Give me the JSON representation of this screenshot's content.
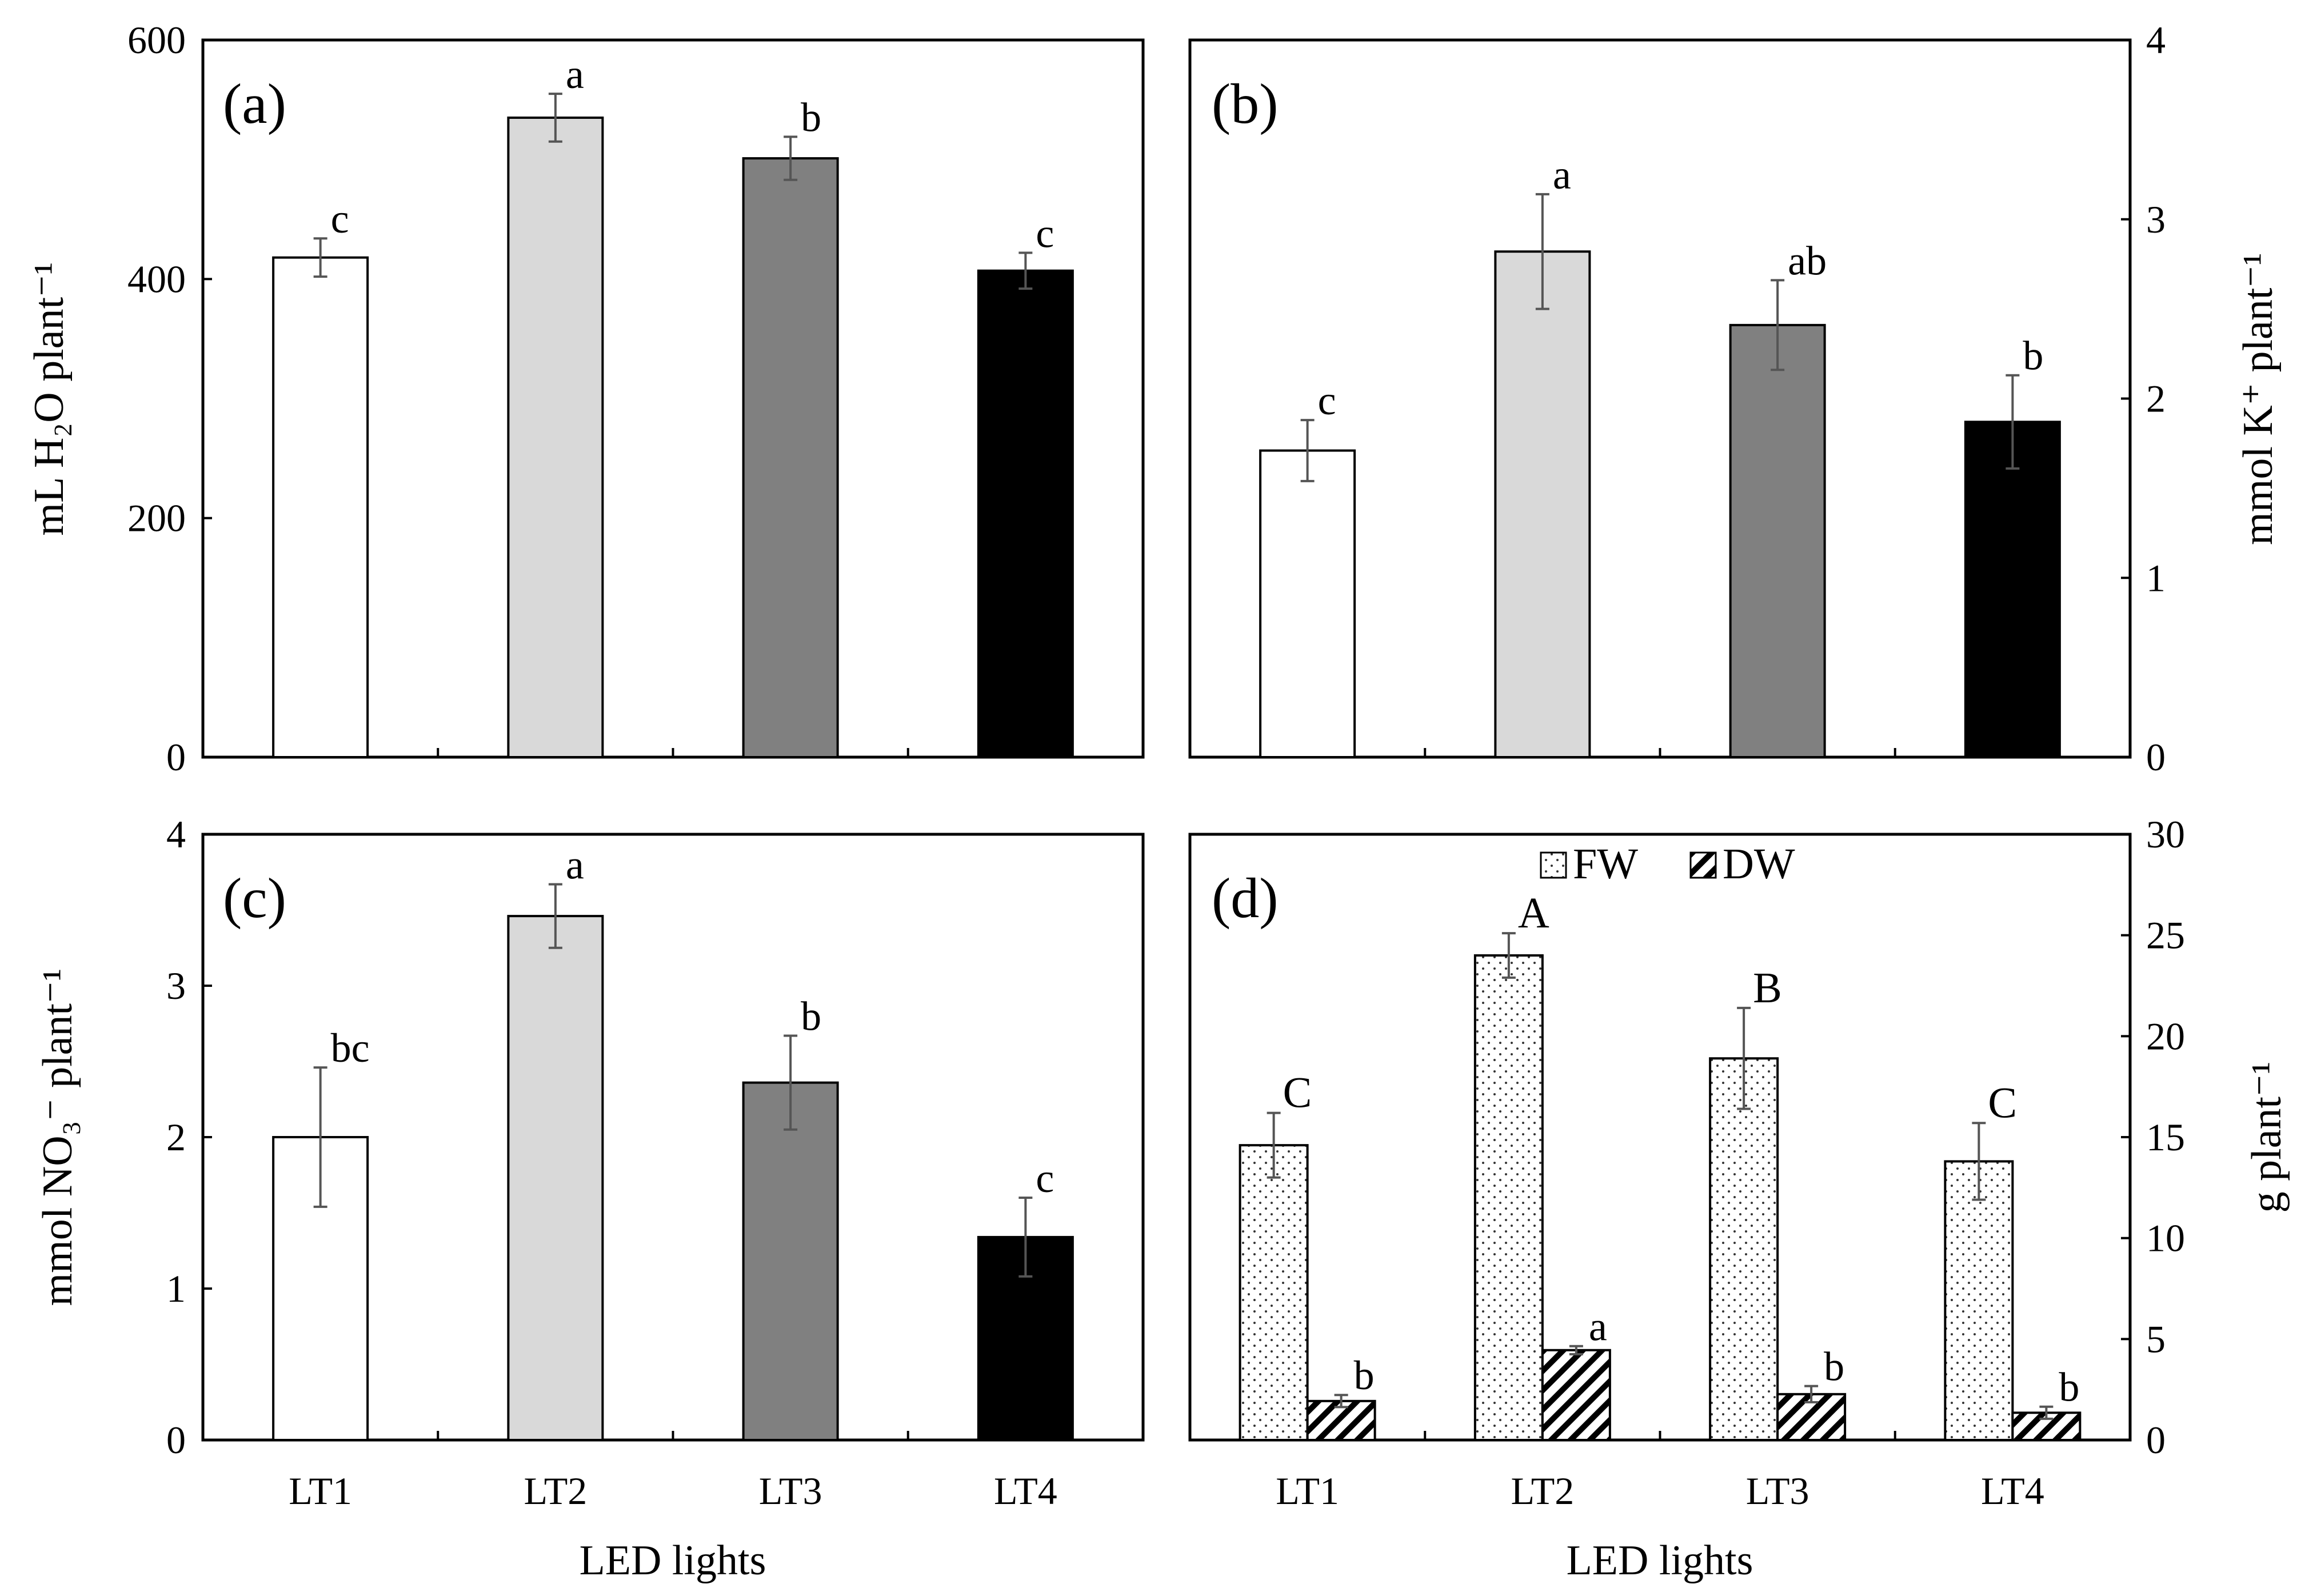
{
  "colors": {
    "LT1": "#ffffff",
    "LT2": "#d9d9d9",
    "LT3": "#808080",
    "LT4": "#000000",
    "error_bar": "#555555"
  },
  "chart_data": [
    {
      "id": "a",
      "panel_label": "(a)",
      "type": "bar",
      "categories": [
        "LT1",
        "LT2",
        "LT3",
        "LT4"
      ],
      "values": [
        418,
        535,
        501,
        407
      ],
      "errors": [
        16,
        20,
        18,
        15
      ],
      "significance": [
        "c",
        "a",
        "b",
        "c"
      ],
      "ylabel": "mL H₂O plant⁻¹",
      "ylim": [
        0,
        600
      ],
      "yticks": [
        "0",
        "200",
        "400",
        "600"
      ],
      "xlabel": "",
      "axis_side": "left"
    },
    {
      "id": "b",
      "panel_label": "(b)",
      "type": "bar",
      "categories": [
        "LT1",
        "LT2",
        "LT3",
        "LT4"
      ],
      "values": [
        1.71,
        2.82,
        2.41,
        1.87
      ],
      "errors": [
        0.17,
        0.32,
        0.25,
        0.26
      ],
      "significance": [
        "c",
        "a",
        "ab",
        "b"
      ],
      "ylabel": "mmol K⁺ plant⁻¹",
      "ylim": [
        0,
        4
      ],
      "yticks": [
        "0",
        "1",
        "2",
        "3",
        "4"
      ],
      "xlabel": "",
      "axis_side": "right"
    },
    {
      "id": "c",
      "panel_label": "(c)",
      "type": "bar",
      "categories": [
        "LT1",
        "LT2",
        "LT3",
        "LT4"
      ],
      "values": [
        2.0,
        3.46,
        2.36,
        1.34
      ],
      "errors": [
        0.46,
        0.21,
        0.31,
        0.26
      ],
      "significance": [
        "bc",
        "a",
        "b",
        "c"
      ],
      "ylabel": "mmol NO₃⁻ plant⁻¹",
      "ylim": [
        0,
        4
      ],
      "yticks": [
        "0",
        "1",
        "2",
        "3",
        "4"
      ],
      "xlabel": "LED lights",
      "axis_side": "left"
    },
    {
      "id": "d",
      "panel_label": "(d)",
      "type": "bar",
      "categories": [
        "LT1",
        "LT2",
        "LT3",
        "LT4"
      ],
      "series": [
        {
          "name": "FW",
          "values": [
            14.6,
            24.0,
            18.9,
            13.8
          ],
          "errors": [
            1.6,
            1.1,
            2.5,
            1.9
          ],
          "significance": [
            "C",
            "A",
            "B",
            "C"
          ]
        },
        {
          "name": "DW",
          "values": [
            1.93,
            4.45,
            2.27,
            1.35
          ],
          "errors": [
            0.3,
            0.2,
            0.4,
            0.3
          ],
          "significance": [
            "b",
            "a",
            "b",
            "b"
          ]
        }
      ],
      "ylabel": "g plant⁻¹",
      "ylim": [
        0,
        30
      ],
      "yticks": [
        "0",
        "5",
        "10",
        "15",
        "20",
        "25",
        "30"
      ],
      "xlabel": "LED lights",
      "axis_side": "right",
      "legend": [
        "FW",
        "DW"
      ],
      "legend_position": "top-center"
    }
  ]
}
